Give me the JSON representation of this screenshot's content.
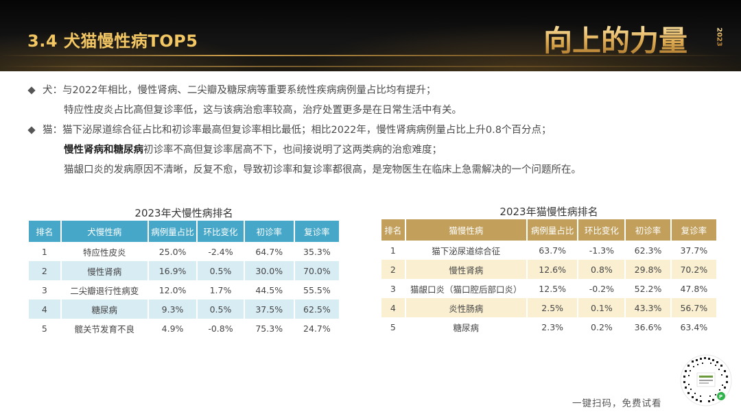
{
  "header": {
    "title": "3.4  犬猫慢性病TOP5",
    "logo_text": "向上的力量",
    "logo_year": "2023",
    "accent_color": "#f3c764"
  },
  "bullets": {
    "dog": {
      "line1": "犬：与2022年相比，慢性肾病、二尖瓣及糖尿病等重要系统性疾病病例量占比均有提升；",
      "line2": "特应性皮炎占比高但复诊率低，这与该病治愈率较高，治疗处置更多是在日常生活中有关。"
    },
    "cat": {
      "line1": "猫：猫下泌尿道综合征占比和初诊率最高但复诊率相比最低；相比2022年，慢性肾病病例量占比上升0.8个百分点；",
      "line2_bold": "慢性肾病和糖尿病",
      "line2_rest": "初诊率不高但复诊率居高不下，也间接说明了这两类病的治愈难度；",
      "line3": "猫龈口炎的发病原因不清晰，反复不愈，导致初诊率和复诊率都很高，是宠物医生在临床上急需解决的一个问题所在。"
    }
  },
  "dog_table": {
    "title": "2023年犬慢性病排名",
    "headers": [
      "排名",
      "犬慢性病",
      "病例量占比",
      "环比变化",
      "初诊率",
      "复诊率"
    ],
    "rows": [
      [
        "1",
        "特应性皮炎",
        "25.0%",
        "-2.4%",
        "64.7%",
        "35.3%"
      ],
      [
        "2",
        "慢性肾病",
        "16.9%",
        "0.5%",
        "30.0%",
        "70.0%"
      ],
      [
        "3",
        "二尖瓣退行性病变",
        "12.0%",
        "1.7%",
        "44.5%",
        "55.5%"
      ],
      [
        "4",
        "糖尿病",
        "9.3%",
        "0.5%",
        "37.5%",
        "62.5%"
      ],
      [
        "5",
        "髋关节发育不良",
        "4.9%",
        "-0.8%",
        "75.3%",
        "24.7%"
      ]
    ],
    "header_color": "#46a7c8",
    "stripe_color": "#d8ecf4"
  },
  "cat_table": {
    "title": "2023年猫慢性病排名",
    "headers": [
      "排名",
      "猫慢性病",
      "病例量占比",
      "环比变化",
      "初诊率",
      "复诊率"
    ],
    "rows": [
      [
        "1",
        "猫下泌尿道综合征",
        "63.7%",
        "-1.3%",
        "62.3%",
        "37.7%"
      ],
      [
        "2",
        "慢性肾病",
        "12.6%",
        "0.8%",
        "29.8%",
        "70.2%"
      ],
      [
        "3",
        "猫龈口炎（猫口腔后部口炎）",
        "12.5%",
        "-0.2%",
        "52.2%",
        "47.8%"
      ],
      [
        "4",
        "炎性肠病",
        "2.5%",
        "0.1%",
        "43.3%",
        "56.7%"
      ],
      [
        "5",
        "糖尿病",
        "2.3%",
        "0.2%",
        "36.6%",
        "63.4%"
      ]
    ],
    "header_color": "#c2a05c",
    "stripe_color": "#faefd0"
  },
  "footer": {
    "scan_text": "一键扫码，免费试看"
  }
}
